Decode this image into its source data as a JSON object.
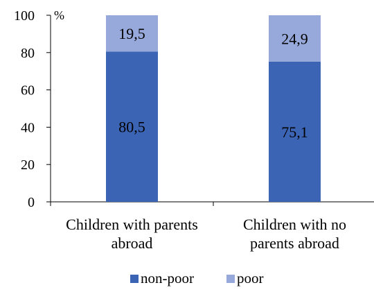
{
  "chart_data": {
    "type": "bar",
    "stacked": true,
    "title": "",
    "xlabel": "",
    "ylabel": "",
    "unit": "%",
    "ylim": [
      0,
      100
    ],
    "yticks": [
      0,
      20,
      40,
      60,
      80,
      100
    ],
    "categories": [
      [
        "Children with parents",
        "abroad"
      ],
      [
        "Children with no",
        "parents abroad"
      ]
    ],
    "series": [
      {
        "name": "non-poor",
        "values": [
          80.5,
          75.1
        ],
        "labels": [
          "80,5",
          "75,1"
        ],
        "color": "#3C64B4"
      },
      {
        "name": "poor",
        "values": [
          19.5,
          24.9
        ],
        "labels": [
          "19,5",
          "24,9"
        ],
        "color": "#96A9DA"
      }
    ],
    "grid": false,
    "legend_position": "bottom"
  }
}
